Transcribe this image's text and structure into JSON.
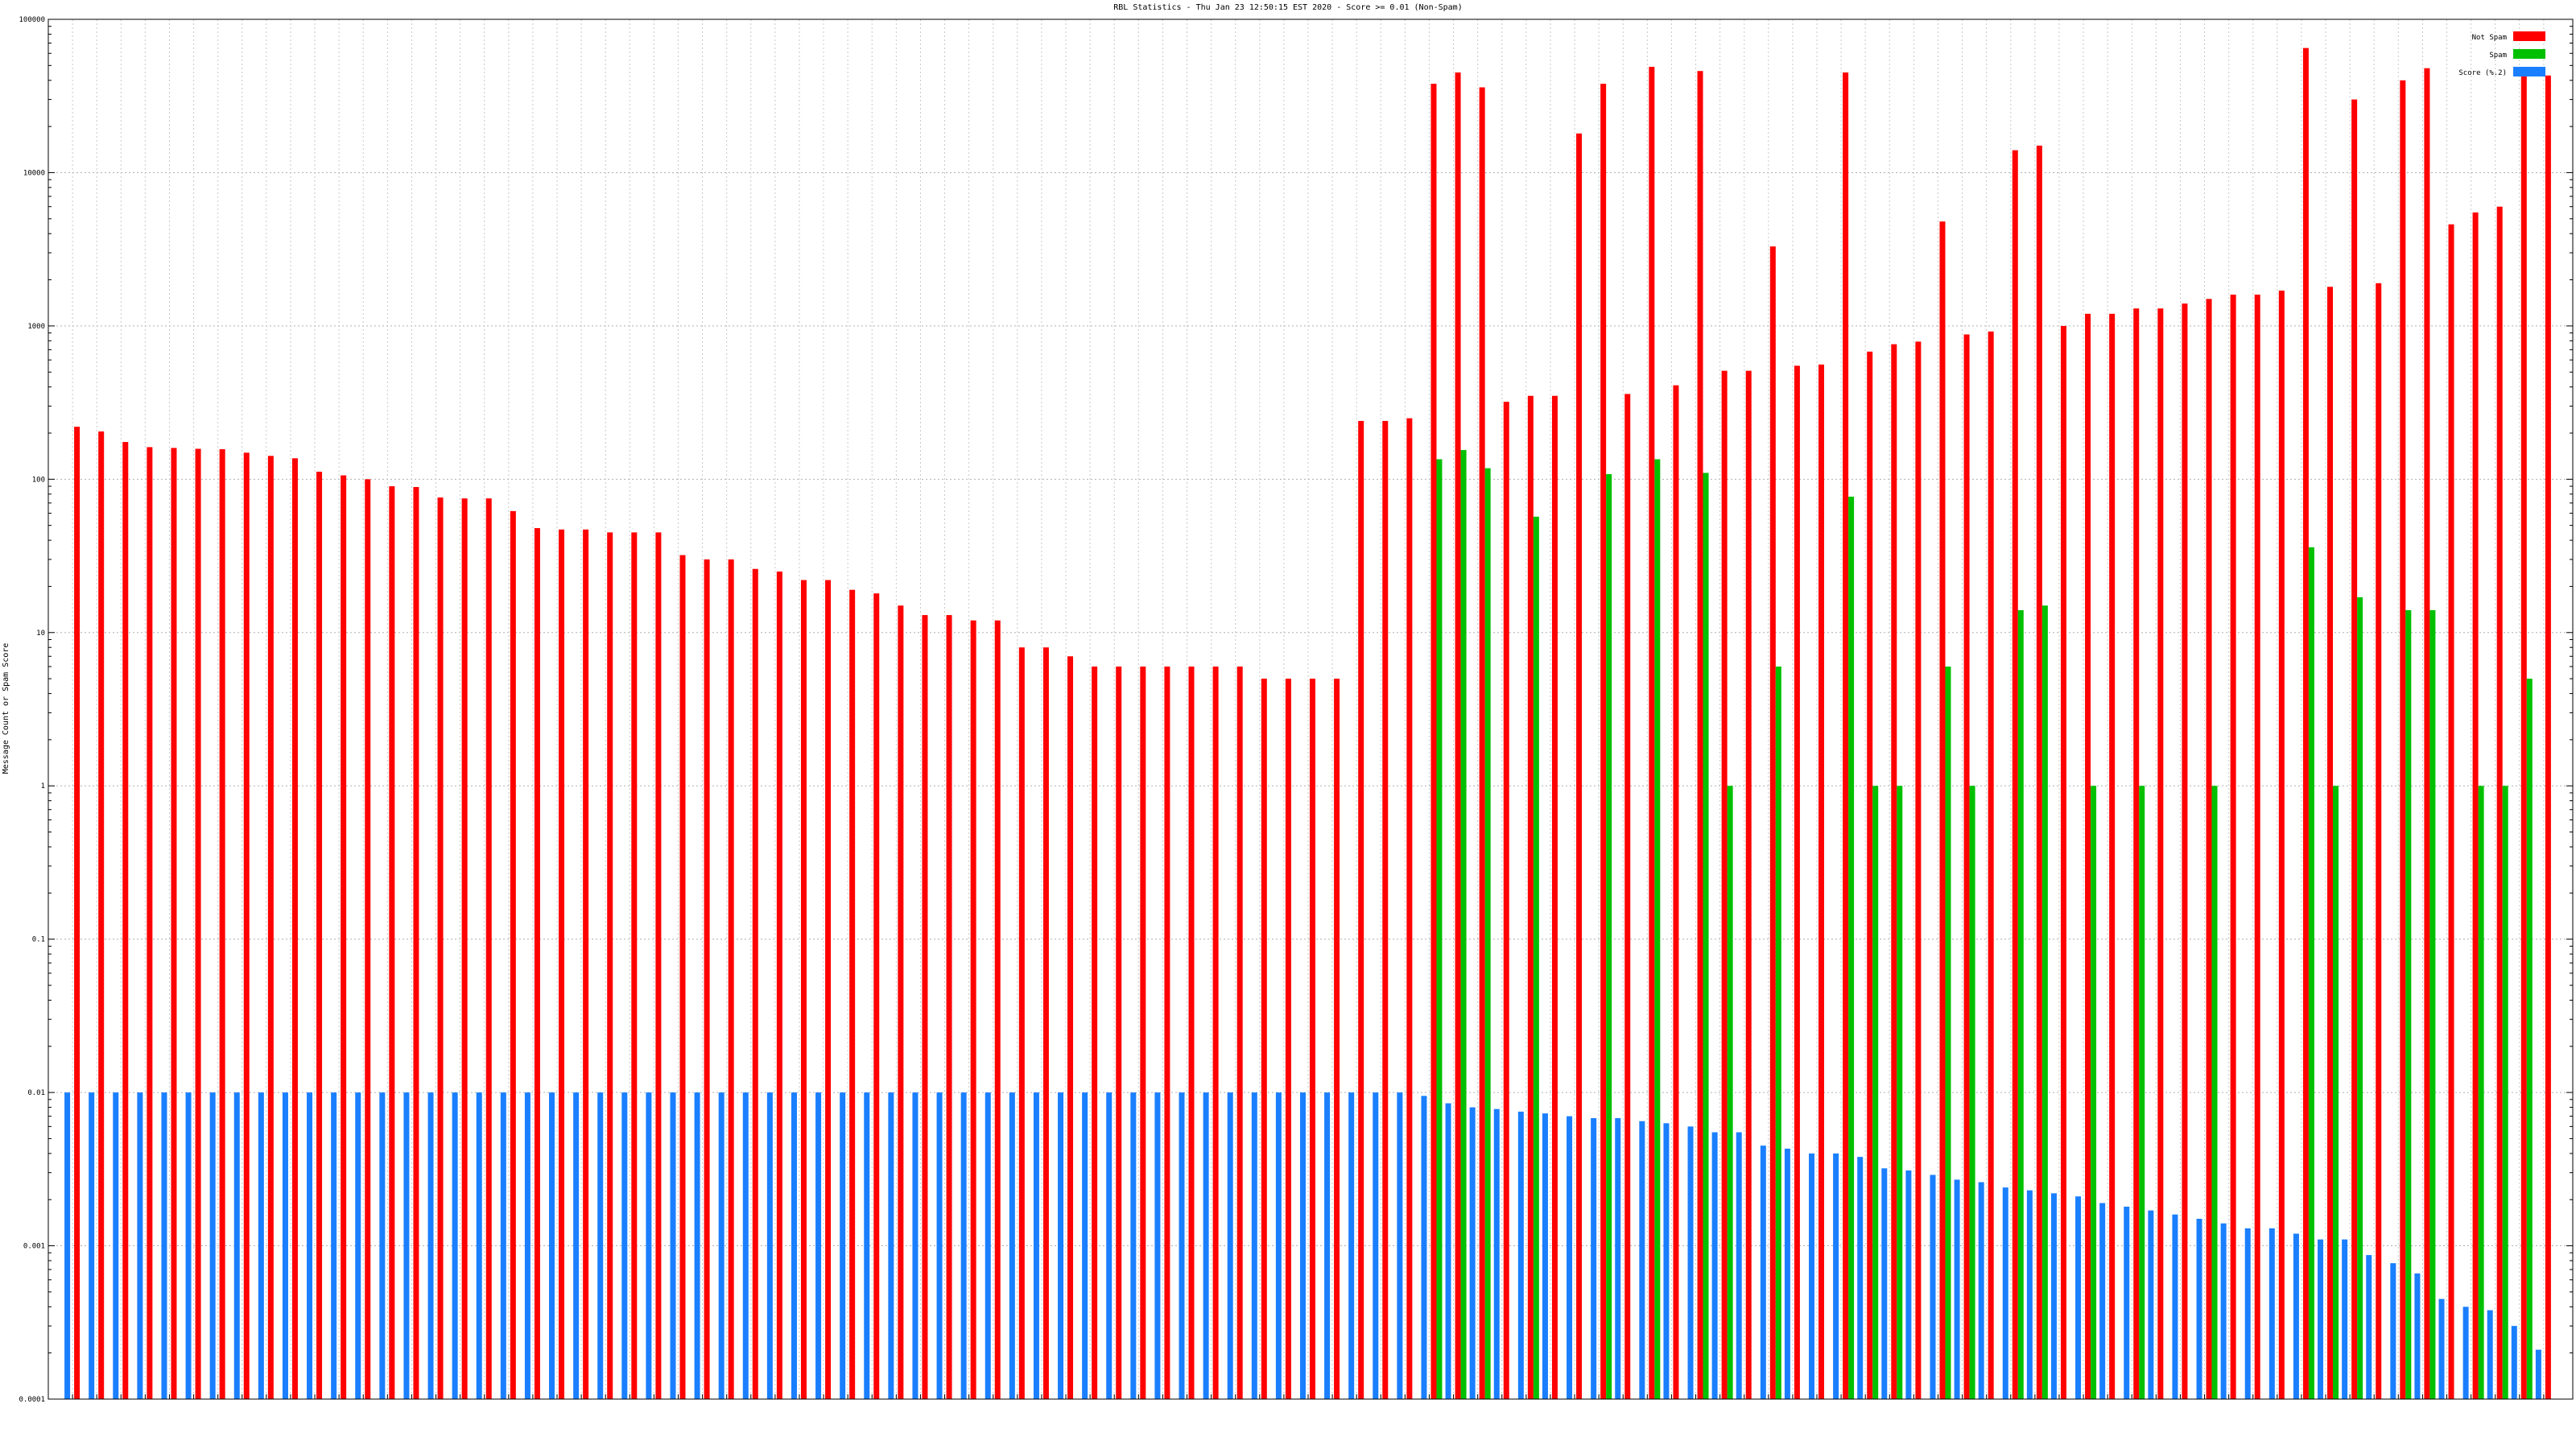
{
  "chart_data": {
    "type": "bar",
    "title": "RBL Statistics - Thu Jan 23 12:50:15 EST 2020 - Score >= 0.01 (Non-Spam)",
    "ylabel": "Message Count or Spam Score",
    "yscale": "log",
    "ylim": [
      0.0001,
      100000
    ],
    "yticks": [
      "0.0001",
      "0.001",
      "0.01",
      "0.1",
      "1",
      "10",
      "100",
      "1000",
      "10000",
      "100000"
    ],
    "grid": true,
    "legend": "top-right",
    "colors": {
      "not_spam": "#ff0000",
      "spam": "#00c000",
      "score": "#1a7fff"
    },
    "series": [
      {
        "name": "Not Spam",
        "values": [
          220,
          205,
          175,
          162,
          160,
          158,
          157,
          149,
          142,
          137,
          112,
          106,
          100,
          90,
          89,
          76,
          75,
          75,
          62,
          48,
          47,
          47,
          45,
          45,
          45,
          32,
          30,
          30,
          26,
          25,
          22,
          22,
          19,
          18,
          15,
          13,
          13,
          12,
          12,
          8,
          8,
          7,
          6,
          6,
          6,
          6,
          6,
          6,
          6,
          5,
          5,
          5,
          5,
          240,
          240,
          250,
          38000,
          45000,
          36000,
          320,
          350,
          350,
          18000,
          38000,
          360,
          49000,
          410,
          46000,
          510,
          510,
          3300,
          550,
          560,
          45000,
          680,
          760,
          790,
          4800,
          880,
          920,
          14000,
          15000,
          1000,
          1200,
          1200,
          1300,
          1300,
          1400,
          1500,
          1600,
          1600,
          1700,
          65000,
          1800,
          30000,
          1900,
          40000,
          48000,
          4600,
          5500,
          6000,
          43000,
          43000
        ]
      },
      {
        "name": "Spam",
        "values": [
          0,
          0,
          0,
          0,
          0,
          0,
          0,
          0,
          0,
          0,
          0,
          0,
          0,
          0,
          0,
          0,
          0,
          0,
          0,
          0,
          0,
          0,
          0,
          0,
          0,
          0,
          0,
          0,
          0,
          0,
          0,
          0,
          0,
          0,
          0,
          0,
          0,
          0,
          0,
          0,
          0,
          0,
          0,
          0,
          0,
          0,
          0,
          0,
          0,
          0,
          0,
          0,
          0,
          0,
          0,
          0,
          135,
          155,
          118,
          0,
          57,
          0,
          0,
          108,
          0,
          135,
          0,
          110,
          1,
          0,
          6,
          0,
          0,
          77,
          1,
          1,
          0,
          6,
          1,
          0,
          14,
          15,
          0,
          1,
          0,
          1,
          0,
          0,
          1,
          0,
          0,
          0,
          36,
          1,
          17,
          0,
          14,
          14,
          0,
          1,
          1,
          5,
          0
        ]
      },
      {
        "name": "Score (%.2)",
        "values": [
          0.01,
          0.01,
          0.01,
          0.01,
          0.01,
          0.01,
          0.01,
          0.01,
          0.01,
          0.01,
          0.01,
          0.01,
          0.01,
          0.01,
          0.01,
          0.01,
          0.01,
          0.01,
          0.01,
          0.01,
          0.01,
          0.01,
          0.01,
          0.01,
          0.01,
          0.01,
          0.01,
          0.01,
          0.01,
          0.01,
          0.01,
          0.01,
          0.01,
          0.01,
          0.01,
          0.01,
          0.01,
          0.01,
          0.01,
          0.01,
          0.01,
          0.01,
          0.01,
          0.01,
          0.01,
          0.01,
          0.01,
          0.01,
          0.01,
          0.01,
          0.01,
          0.01,
          0.01,
          0.01,
          0.01,
          0.01,
          0.0095,
          0.0085,
          0.008,
          0.0078,
          0.0075,
          0.0073,
          0.007,
          0.0068,
          0.0068,
          0.0065,
          0.0063,
          0.006,
          0.0055,
          0.0055,
          0.0045,
          0.0043,
          0.004,
          0.004,
          0.0038,
          0.0032,
          0.0031,
          0.0029,
          0.0027,
          0.0026,
          0.0024,
          0.0023,
          0.0022,
          0.0021,
          0.0019,
          0.0018,
          0.0017,
          0.0016,
          0.0015,
          0.0014,
          0.0013,
          0.0013,
          0.0012,
          0.0011,
          0.0011,
          0.00087,
          0.00077,
          0.00066,
          0.00045,
          0.0004,
          0.00038,
          0.0003,
          0.00021
        ]
      }
    ]
  }
}
